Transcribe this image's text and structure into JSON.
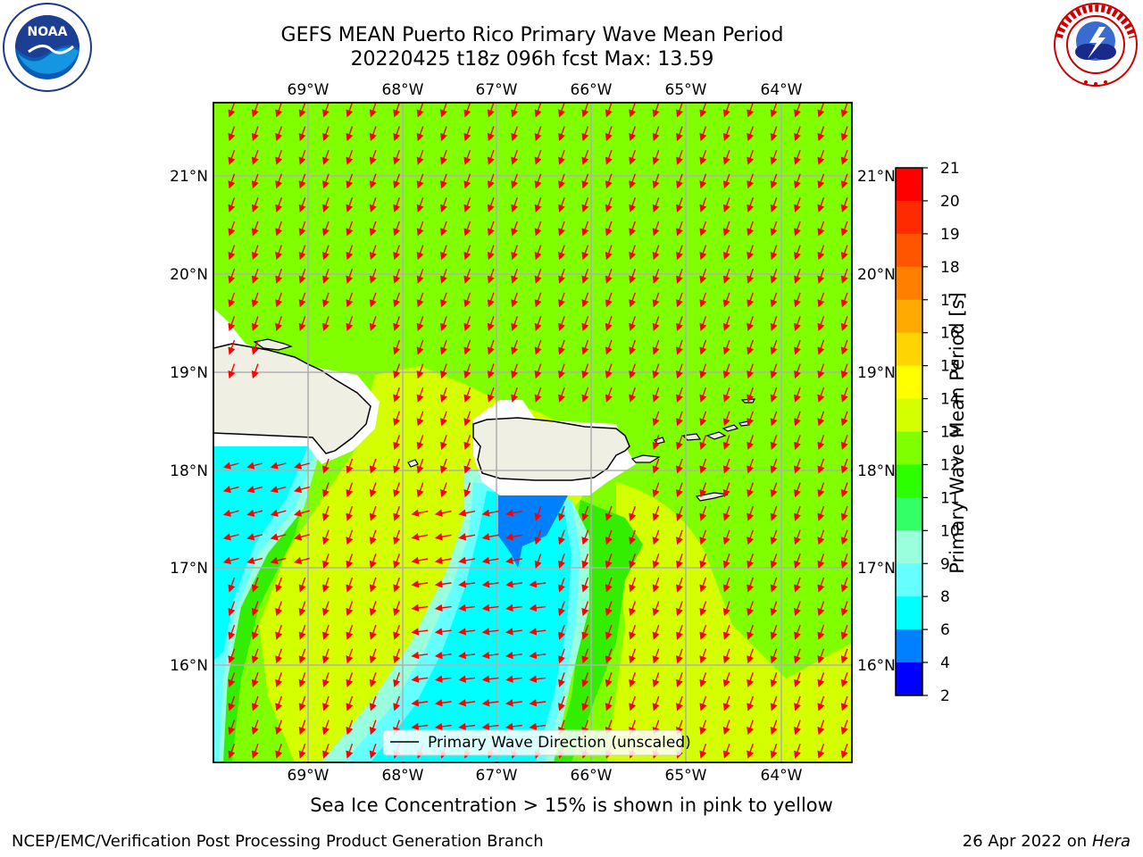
{
  "title": {
    "line1": "GEFS MEAN Puerto Rico Primary Wave Mean Period",
    "line2": "20220425 t18z 096h fcst   Max: 13.59"
  },
  "axes": {
    "lon_ticks": [
      "69°W",
      "68°W",
      "67°W",
      "66°W",
      "65°W",
      "64°W"
    ],
    "lat_ticks": [
      "21°N",
      "20°N",
      "19°N",
      "18°N",
      "17°N",
      "16°N"
    ]
  },
  "legend": {
    "label": "Primary Wave Direction (unscaled)"
  },
  "colorbar": {
    "label": "Primary Wave Mean Period [s]",
    "ticks": [
      "21",
      "20",
      "19",
      "18",
      "17",
      "16",
      "15",
      "14",
      "13",
      "12",
      "11",
      "10",
      "9",
      "8",
      "6",
      "4",
      "2"
    ],
    "colors": [
      "#ff0000",
      "#ff2a00",
      "#ff5500",
      "#ff8000",
      "#ffaa00",
      "#ffd400",
      "#ffff00",
      "#d4ff00",
      "#80ff00",
      "#2bff00",
      "#33ff66",
      "#99ffdd",
      "#66ffff",
      "#00ffff",
      "#0080ff",
      "#0000ff"
    ]
  },
  "note": "Sea Ice Concentration > 15% is shown in pink to yellow",
  "footer": {
    "left": "NCEP/EMC/Verification Post Processing Product Generation Branch",
    "date": "26 Apr 2022 on",
    "machine": "Hera"
  },
  "map_colors": {
    "period_13": "#80ff00",
    "period_14": "#d4ff00",
    "period_12": "#33ee00",
    "period_8": "#00ffff",
    "period_9": "#66ffff",
    "period_10": "#99ffdd",
    "period_6": "#0080ff",
    "land": "#efefe4",
    "arrow": "#ff0000"
  }
}
